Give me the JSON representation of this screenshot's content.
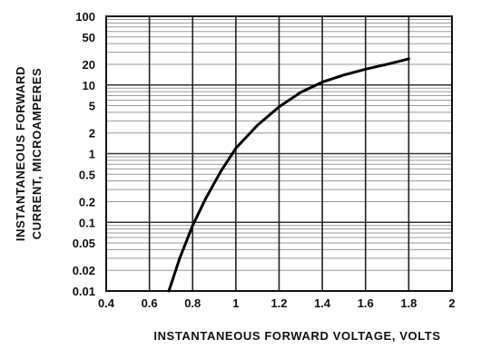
{
  "chart_data": {
    "type": "line",
    "title": "",
    "xlabel": "INSTANTANEOUS FORWARD VOLTAGE, VOLTS",
    "ylabel_lines": [
      "INSTANTANEOUS FORWARD",
      "CURRENT, MICROAMPERES"
    ],
    "x_scale": "linear",
    "y_scale": "log",
    "xlim": [
      0.4,
      2.0
    ],
    "ylim": [
      0.01,
      100
    ],
    "x_ticks": [
      0.4,
      0.6,
      0.8,
      1.0,
      1.2,
      1.4,
      1.6,
      1.8,
      2.0
    ],
    "x_tick_labels": [
      "0.4",
      "0.6",
      "0.8",
      "1",
      "1.2",
      "1.4",
      "1.6",
      "1.8",
      "2"
    ],
    "y_ticks": [
      0.01,
      0.02,
      0.05,
      0.1,
      0.2,
      0.5,
      1,
      2,
      5,
      10,
      20,
      50,
      100
    ],
    "y_tick_labels": [
      "0.01",
      "0.02",
      "0.05",
      "0.1",
      "0.2",
      "0.5",
      "1",
      "2",
      "5",
      "10",
      "20",
      "50",
      "100"
    ],
    "grid": true,
    "series": [
      {
        "x": [
          0.69,
          0.74,
          0.8,
          0.86,
          0.93,
          1.0,
          1.1,
          1.2,
          1.3,
          1.4,
          1.5,
          1.6,
          1.7,
          1.8
        ],
        "y": [
          0.01,
          0.03,
          0.09,
          0.22,
          0.55,
          1.2,
          2.6,
          4.8,
          7.8,
          11,
          14,
          17,
          20,
          24
        ]
      }
    ]
  }
}
